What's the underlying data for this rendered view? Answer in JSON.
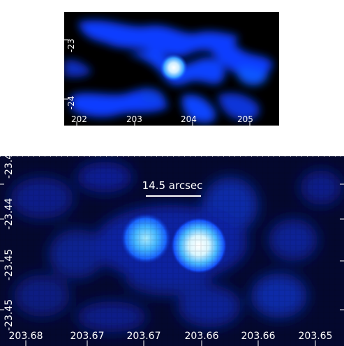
{
  "top_image": {
    "x_ticks": [
      "202",
      "203",
      "204",
      "205"
    ],
    "y_ticks": [
      "-23",
      "-24"
    ]
  },
  "bottom_image": {
    "scale_bar_label": "14.5 arcsec",
    "x_ticks": [
      "203.68",
      "203.67",
      "203.67",
      "203.66",
      "203.66",
      "203.65"
    ],
    "y_ticks": [
      "-23.4",
      "-23.44",
      "-23.45",
      "-23.45"
    ]
  },
  "colors": {
    "background_top": "#000000",
    "background_bottom": "#04082e",
    "diffuse_blue": "#0a3cff",
    "bright_core": "#e8f6ff",
    "tick_white": "#ffffff"
  }
}
